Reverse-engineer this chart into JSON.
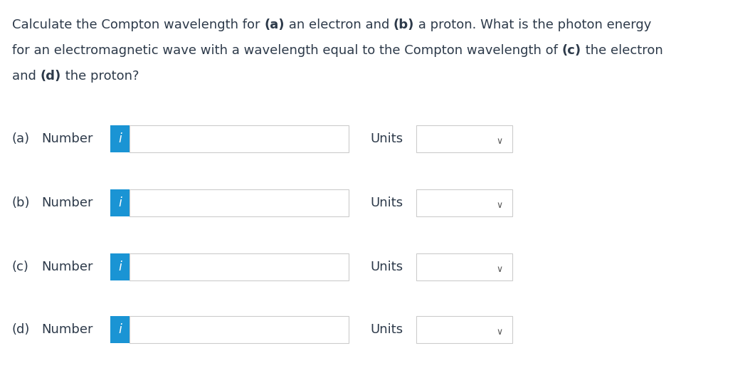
{
  "background_color": "#ffffff",
  "text_color": "#2d3a4a",
  "blue_button_color": "#1a94d4",
  "button_text_color": "#ffffff",
  "input_box_border": "#cccccc",
  "dropdown_box_border": "#cccccc",
  "font_size": 13.0,
  "rows": [
    {
      "label": "(a)"
    },
    {
      "label": "(b)"
    },
    {
      "label": "(c)"
    },
    {
      "label": "(d)"
    }
  ],
  "title_lines": [
    [
      [
        "Calculate the Compton wavelength for ",
        false
      ],
      [
        "(a)",
        true
      ],
      [
        " an electron and ",
        false
      ],
      [
        "(b)",
        true
      ],
      [
        " a proton. What is the photon energy",
        false
      ]
    ],
    [
      [
        "for an electromagnetic wave with a wavelength equal to the Compton wavelength of ",
        false
      ],
      [
        "(c)",
        true
      ],
      [
        " the electron",
        false
      ]
    ],
    [
      [
        "and ",
        false
      ],
      [
        "(d)",
        true
      ],
      [
        " the proton?",
        false
      ]
    ]
  ],
  "fig_width": 10.54,
  "fig_height": 5.31,
  "dpi": 100
}
